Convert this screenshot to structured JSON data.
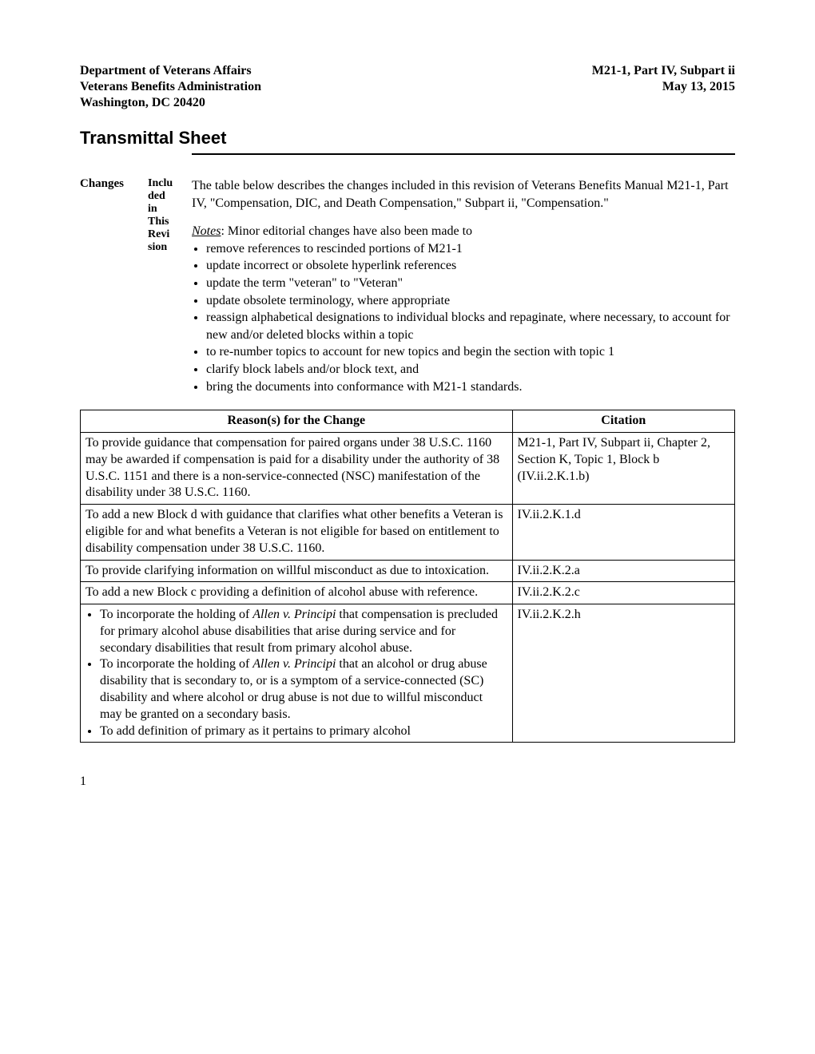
{
  "header": {
    "left1": "Department of Veterans Affairs",
    "left2": "Veterans Benefits Administration",
    "left3": "Washington, DC  20420",
    "right1": "M21-1, Part IV, Subpart ii",
    "right2": "May 13, 2015"
  },
  "title": "Transmittal Sheet",
  "section": {
    "label": "Changes",
    "sublabel": "Included in This Revision",
    "intro": "The table below describes the changes included in this revision of Veterans Benefits Manual M21-1, Part IV, \"Compensation, DIC, and Death Compensation,\" Subpart ii, \"Compensation.\"",
    "notes_label": "Notes",
    "notes_after": ":   Minor editorial changes have also been made to",
    "bullets": [
      "remove references to rescinded portions of M21-1",
      "update incorrect or obsolete hyperlink references",
      "update the term \"veteran\" to \"Veteran\"",
      "update obsolete terminology, where appropriate",
      "reassign alphabetical designations to individual blocks and repaginate, where necessary, to account for new and/or deleted blocks within a topic",
      "to re-number topics to account for new topics and begin the section with topic 1",
      "clarify block labels and/or block text, and",
      "bring the documents into conformance with M21-1 standards."
    ]
  },
  "table": {
    "col1": "Reason(s) for the Change",
    "col2": "Citation",
    "rows": [
      {
        "reason_type": "text",
        "reason": "To provide guidance that compensation for paired organs under 38 U.S.C. 1160 may be awarded if compensation is paid for a disability under the authority of 38 U.S.C. 1151 and there is a non-service-connected (NSC) manifestation of the disability under 38 U.S.C. 1160.",
        "citation": "M21-1, Part IV, Subpart ii, Chapter 2, Section K, Topic 1, Block b (IV.ii.2.K.1.b)"
      },
      {
        "reason_type": "text",
        "reason": "To add a new Block d with guidance that clarifies what other benefits a Veteran is eligible for and what benefits a Veteran is not eligible for based on entitlement to disability compensation under 38 U.S.C. 1160.",
        "citation": "IV.ii.2.K.1.d"
      },
      {
        "reason_type": "text",
        "reason": "To provide clarifying information on willful misconduct as due to intoxication.",
        "citation": "IV.ii.2.K.2.a"
      },
      {
        "reason_type": "text",
        "reason": "To add a new Block c providing a definition of alcohol abuse with reference.",
        "citation": "IV.ii.2.K.2.c"
      },
      {
        "reason_type": "list",
        "items": [
          {
            "pre": "To incorporate the holding of ",
            "ital": "Allen v. Principi",
            "post": " that compensation is precluded for primary alcohol abuse disabilities that arise during service and for secondary disabilities that result from primary alcohol abuse."
          },
          {
            "pre": "To incorporate the holding of ",
            "ital": "Allen v. Principi",
            "post": " that an alcohol or drug abuse disability that is secondary to, or is a symptom of a service-connected (SC) disability and where alcohol or drug abuse is not due to willful misconduct may be granted on a secondary basis."
          },
          {
            "pre": "To add definition of primary as it pertains to primary alcohol",
            "ital": "",
            "post": ""
          }
        ],
        "citation": "IV.ii.2.K.2.h"
      }
    ]
  },
  "page_number": "1"
}
